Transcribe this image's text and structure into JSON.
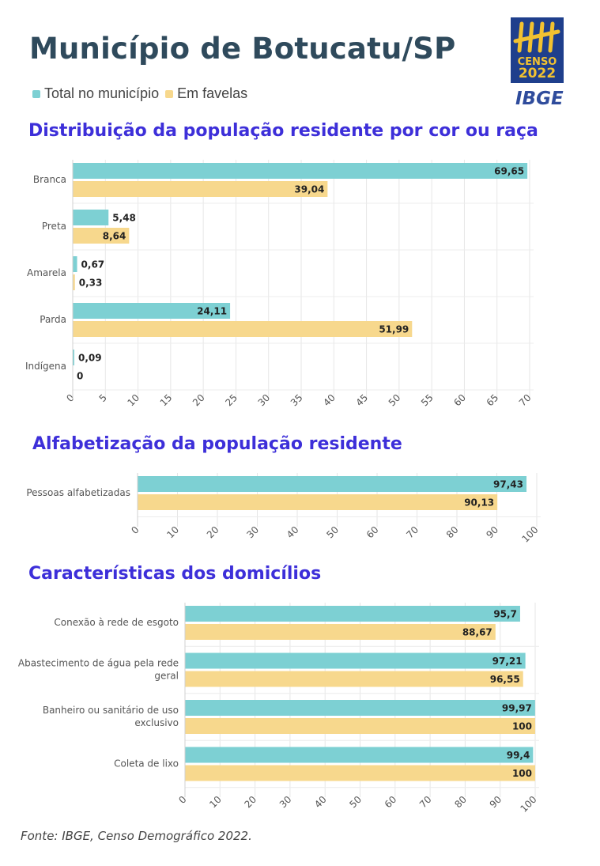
{
  "title": "Município de Botucatu/SP",
  "legend": [
    {
      "label": "Total no município",
      "color": "#7dd0d3"
    },
    {
      "label": "Em favelas",
      "color": "#f7d88d"
    }
  ],
  "logo": {
    "censo_label": "CENSO",
    "censo_year": "2022",
    "ibge_label": "IBGE",
    "icon": "censo-tally-logo"
  },
  "colors": {
    "total": "#7dd0d3",
    "favelas": "#f7d88d",
    "section_title": "#3d2fd9"
  },
  "chart_data": [
    {
      "type": "bar",
      "orientation": "horizontal",
      "title": "Distribuição da população residente por cor ou raça",
      "categories": [
        "Branca",
        "Preta",
        "Amarela",
        "Parda",
        "Indígena"
      ],
      "series": [
        {
          "name": "Total no município",
          "values": [
            69.65,
            5.48,
            0.67,
            24.11,
            0.09
          ],
          "labels": [
            "69,65",
            "5,48",
            "0,67",
            "24,11",
            "0,09"
          ]
        },
        {
          "name": "Em favelas",
          "values": [
            39.04,
            8.64,
            0.33,
            51.99,
            0
          ],
          "labels": [
            "39,04",
            "8,64",
            "0,33",
            "51,99",
            "0"
          ]
        }
      ],
      "xlim": [
        0,
        70
      ],
      "ticks": [
        0,
        5,
        10,
        15,
        20,
        25,
        30,
        35,
        40,
        45,
        50,
        55,
        60,
        65,
        70
      ],
      "grid": true
    },
    {
      "type": "bar",
      "orientation": "horizontal",
      "title": "Alfabetização da população residente",
      "categories": [
        "Pessoas alfabetizadas"
      ],
      "series": [
        {
          "name": "Total no município",
          "values": [
            97.43
          ],
          "labels": [
            "97,43"
          ]
        },
        {
          "name": "Em favelas",
          "values": [
            90.13
          ],
          "labels": [
            "90,13"
          ]
        }
      ],
      "xlim": [
        0,
        100
      ],
      "ticks": [
        0,
        10,
        20,
        30,
        40,
        50,
        60,
        70,
        80,
        90,
        100
      ],
      "grid": true
    },
    {
      "type": "bar",
      "orientation": "horizontal",
      "title": "Características dos domicílios",
      "categories": [
        [
          "Conexão à rede de esgoto"
        ],
        [
          "Abastecimento de água pela rede",
          "geral"
        ],
        [
          "Banheiro ou sanitário de uso",
          "exclusivo"
        ],
        [
          "Coleta de lixo"
        ]
      ],
      "series": [
        {
          "name": "Total no município",
          "values": [
            95.7,
            97.21,
            99.97,
            99.4
          ],
          "labels": [
            "95,7",
            "97,21",
            "99,97",
            "99,4"
          ]
        },
        {
          "name": "Em favelas",
          "values": [
            88.67,
            96.55,
            100,
            100
          ],
          "labels": [
            "88,67",
            "96,55",
            "100",
            "100"
          ]
        }
      ],
      "xlim": [
        0,
        100
      ],
      "ticks": [
        0,
        10,
        20,
        30,
        40,
        50,
        60,
        70,
        80,
        90,
        100
      ],
      "grid": true
    }
  ],
  "source": "Fonte: IBGE, Censo Demográfico 2022."
}
